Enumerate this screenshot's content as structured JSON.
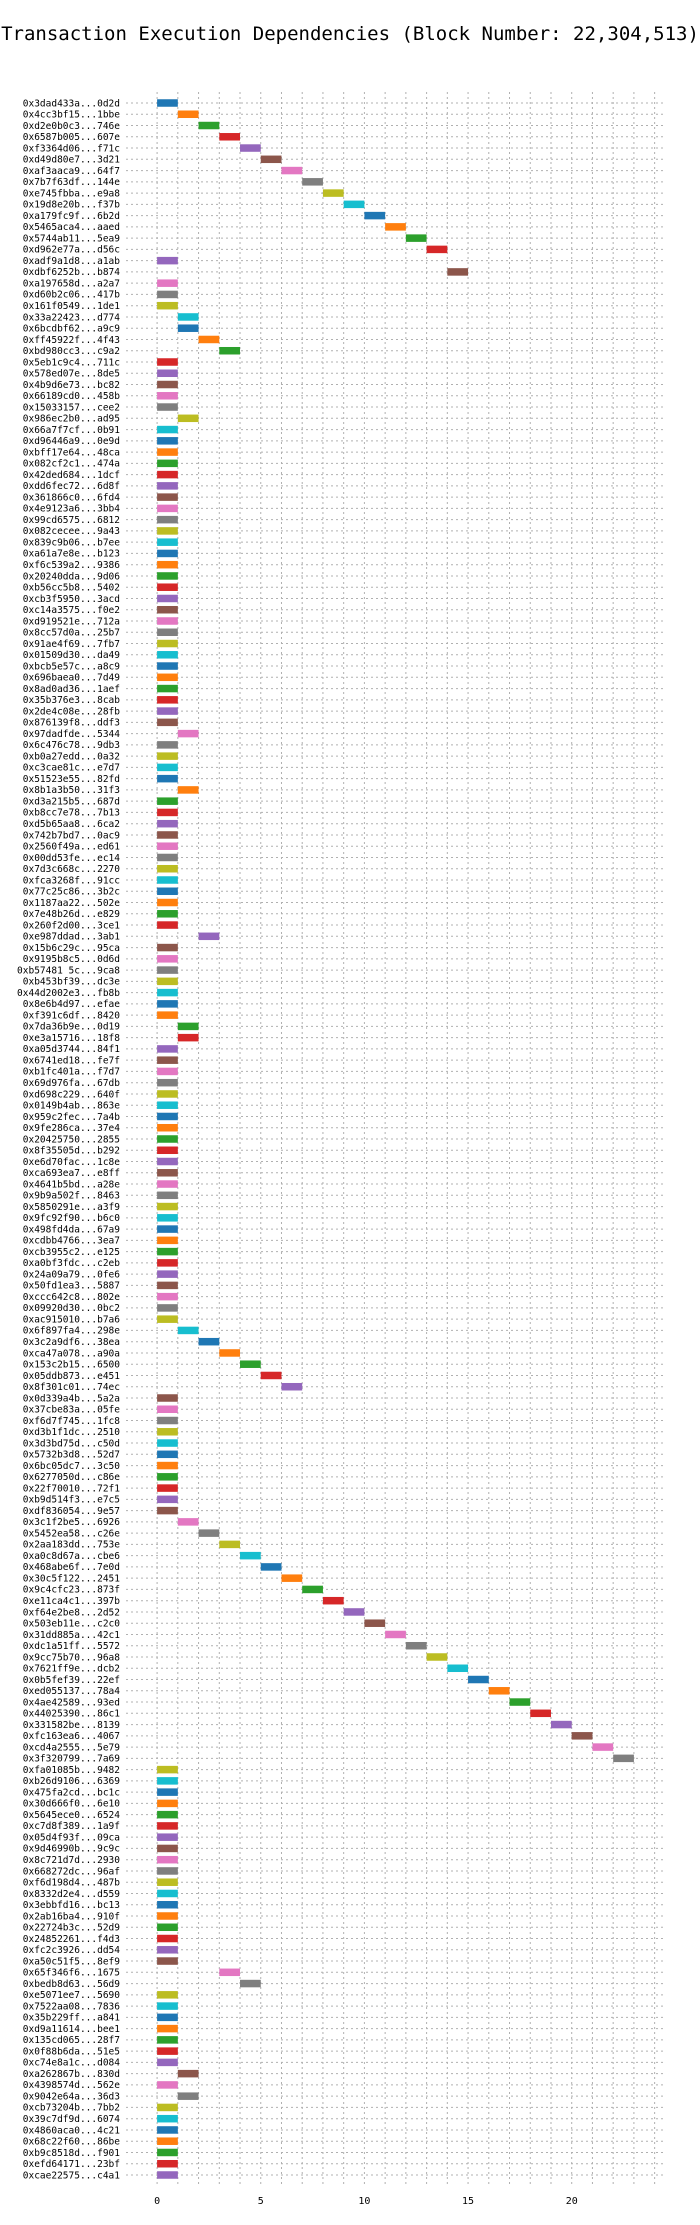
{
  "chart_data": {
    "type": "bar",
    "orientation": "horizontal",
    "title": "Transaction Execution Dependencies (Block Number: 22,304,513)",
    "xlabel": "",
    "ylabel": "",
    "grid": true,
    "xlim": [
      -1.5,
      24.5
    ],
    "xticks": [
      0,
      5,
      10,
      15,
      20
    ],
    "bar_length": 1,
    "palette": [
      "#1f77b4",
      "#ff7f0e",
      "#2ca02c",
      "#d62728",
      "#9467bd",
      "#8c564b",
      "#e377c2",
      "#7f7f7f",
      "#bcbd22",
      "#17becf"
    ],
    "transactions": [
      {
        "tx": "0x3dad433a...0d2d",
        "start": 0
      },
      {
        "tx": "0x4cc3bf15...1bbe",
        "start": 1
      },
      {
        "tx": "0xd2e0b0c3...746e",
        "start": 2
      },
      {
        "tx": "0x6587b005...607e",
        "start": 3
      },
      {
        "tx": "0xf3364d06...f71c",
        "start": 4
      },
      {
        "tx": "0xd49d80e7...3d21",
        "start": 5
      },
      {
        "tx": "0xaf3aaca9...64f7",
        "start": 6
      },
      {
        "tx": "0x7b7f63df...144e",
        "start": 7
      },
      {
        "tx": "0xe745fbba...e9a8",
        "start": 8
      },
      {
        "tx": "0x19d8e20b...f37b",
        "start": 9
      },
      {
        "tx": "0xa179fc9f...6b2d",
        "start": 10
      },
      {
        "tx": "0x5465aca4...aaed",
        "start": 11
      },
      {
        "tx": "0x5744ab11...5ea9",
        "start": 12
      },
      {
        "tx": "0xd962e77a...d56c",
        "start": 13
      },
      {
        "tx": "0xadf9a1d8...a1ab",
        "start": 0
      },
      {
        "tx": "0xdbf6252b...b874",
        "start": 14
      },
      {
        "tx": "0xa197658d...a2a7",
        "start": 0
      },
      {
        "tx": "0xd60b2c06...417b",
        "start": 0
      },
      {
        "tx": "0x161f0549...1de1",
        "start": 0
      },
      {
        "tx": "0x33a22423...d774",
        "start": 1
      },
      {
        "tx": "0x6bcdbf62...a9c9",
        "start": 1
      },
      {
        "tx": "0xff45922f...4f43",
        "start": 2
      },
      {
        "tx": "0xbd980cc3...c9a2",
        "start": 3
      },
      {
        "tx": "0x5eb1c9c4...711c",
        "start": 0
      },
      {
        "tx": "0x578ed07e...8de5",
        "start": 0
      },
      {
        "tx": "0x4b9d6e73...bc82",
        "start": 0
      },
      {
        "tx": "0x66189cd0...458b",
        "start": 0
      },
      {
        "tx": "0x15033157...cee2",
        "start": 0
      },
      {
        "tx": "0x986ec2b0...ad95",
        "start": 1
      },
      {
        "tx": "0x66a7f7cf...0b91",
        "start": 0
      },
      {
        "tx": "0xd96446a9...0e9d",
        "start": 0
      },
      {
        "tx": "0xbff17e64...48ca",
        "start": 0
      },
      {
        "tx": "0x082cf2c1...474a",
        "start": 0
      },
      {
        "tx": "0x42ded684...1dcf",
        "start": 0
      },
      {
        "tx": "0xdd6fec72...6d8f",
        "start": 0
      },
      {
        "tx": "0x361866c0...6fd4",
        "start": 0
      },
      {
        "tx": "0x4e9123a6...3bb4",
        "start": 0
      },
      {
        "tx": "0x99cd6575...6812",
        "start": 0
      },
      {
        "tx": "0x082cecee...9a43",
        "start": 0
      },
      {
        "tx": "0x839c9b06...b7ee",
        "start": 0
      },
      {
        "tx": "0xa61a7e8e...b123",
        "start": 0
      },
      {
        "tx": "0xf6c539a2...9386",
        "start": 0
      },
      {
        "tx": "0x20240dda...9d06",
        "start": 0
      },
      {
        "tx": "0xb56cc5b8...5402",
        "start": 0
      },
      {
        "tx": "0xcb3f5950...3acd",
        "start": 0
      },
      {
        "tx": "0xc14a3575...f0e2",
        "start": 0
      },
      {
        "tx": "0xd919521e...712a",
        "start": 0
      },
      {
        "tx": "0x8cc57d0a...25b7",
        "start": 0
      },
      {
        "tx": "0x91ae4f69...7fb7",
        "start": 0
      },
      {
        "tx": "0x01509d30...da49",
        "start": 0
      },
      {
        "tx": "0xbcb5e57c...a8c9",
        "start": 0
      },
      {
        "tx": "0x696baea0...7d49",
        "start": 0
      },
      {
        "tx": "0x8ad0ad36...1aef",
        "start": 0
      },
      {
        "tx": "0x35b376e3...8cab",
        "start": 0
      },
      {
        "tx": "0x2de4c08e...28fb",
        "start": 0
      },
      {
        "tx": "0x876139f8...ddf3",
        "start": 0
      },
      {
        "tx": "0x97dadfde...5344",
        "start": 1
      },
      {
        "tx": "0x6c476c78...9db3",
        "start": 0
      },
      {
        "tx": "0xb0a27edd...0a32",
        "start": 0
      },
      {
        "tx": "0xc3cae81c...e7d7",
        "start": 0
      },
      {
        "tx": "0x51523e55...82fd",
        "start": 0
      },
      {
        "tx": "0x8b1a3b50...31f3",
        "start": 1
      },
      {
        "tx": "0xd3a215b5...687d",
        "start": 0
      },
      {
        "tx": "0xb8cc7e78...7b13",
        "start": 0
      },
      {
        "tx": "0xd5b65aa8...6ca2",
        "start": 0
      },
      {
        "tx": "0x742b7bd7...0ac9",
        "start": 0
      },
      {
        "tx": "0x2560f49a...ed61",
        "start": 0
      },
      {
        "tx": "0x00dd53fe...ec14",
        "start": 0
      },
      {
        "tx": "0x7d3c668c...2270",
        "start": 0
      },
      {
        "tx": "0xfca3268f...91cc",
        "start": 0
      },
      {
        "tx": "0x77c25c86...3b2c",
        "start": 0
      },
      {
        "tx": "0x1187aa22...502e",
        "start": 0
      },
      {
        "tx": "0x7e48b26d...e829",
        "start": 0
      },
      {
        "tx": "0x260f2d00...3ce1",
        "start": 0
      },
      {
        "tx": "0xe987ddad...3ab1",
        "start": 2
      },
      {
        "tx": "0x15b6c29c...95ca",
        "start": 0
      },
      {
        "tx": "0x9195b8c5...0d6d",
        "start": 0
      },
      {
        "tx": "0xb57481 5c...9ca8",
        "start": 0
      },
      {
        "tx": "0xb453bf39...dc3e",
        "start": 0
      },
      {
        "tx": "0x44d2002e3...fb8b",
        "start": 0
      },
      {
        "tx": "0x8e6b4d97...efae",
        "start": 0
      },
      {
        "tx": "0xf391c6df...8420",
        "start": 0
      },
      {
        "tx": "0x7da36b9e...0d19",
        "start": 1
      },
      {
        "tx": "0xe3a15716...18f8",
        "start": 1
      },
      {
        "tx": "0xa05d3744...84f1",
        "start": 0
      },
      {
        "tx": "0x6741ed18...fe7f",
        "start": 0
      },
      {
        "tx": "0xb1fc401a...f7d7",
        "start": 0
      },
      {
        "tx": "0x69d976fa...67db",
        "start": 0
      },
      {
        "tx": "0xd698c229...640f",
        "start": 0
      },
      {
        "tx": "0x0149b4ab...863e",
        "start": 0
      },
      {
        "tx": "0x959c2fec...7a4b",
        "start": 0
      },
      {
        "tx": "0x9fe286ca...37e4",
        "start": 0
      },
      {
        "tx": "0x20425750...2855",
        "start": 0
      },
      {
        "tx": "0x8f35505d...b292",
        "start": 0
      },
      {
        "tx": "0xe6d70fac...1c8e",
        "start": 0
      },
      {
        "tx": "0xca693ea7...e8ff",
        "start": 0
      },
      {
        "tx": "0x4641b5bd...a28e",
        "start": 0
      },
      {
        "tx": "0x9b9a502f...8463",
        "start": 0
      },
      {
        "tx": "0x5850291e...a3f9",
        "start": 0
      },
      {
        "tx": "0x9fc92f90...b6c0",
        "start": 0
      },
      {
        "tx": "0x498fd4da...67a9",
        "start": 0
      },
      {
        "tx": "0xcdbb4766...3ea7",
        "start": 0
      },
      {
        "tx": "0xcb3955c2...e125",
        "start": 0
      },
      {
        "tx": "0xa0bf3fdc...c2eb",
        "start": 0
      },
      {
        "tx": "0x24a09a79...0fe6",
        "start": 0
      },
      {
        "tx": "0x50fd1ea3...5887",
        "start": 0
      },
      {
        "tx": "0xccc642c8...802e",
        "start": 0
      },
      {
        "tx": "0x09920d30...0bc2",
        "start": 0
      },
      {
        "tx": "0xac915010...b7a6",
        "start": 0
      },
      {
        "tx": "0x6f897fa4...298e",
        "start": 1
      },
      {
        "tx": "0x3c2a9df6...38ea",
        "start": 2
      },
      {
        "tx": "0xca47a078...a90a",
        "start": 3
      },
      {
        "tx": "0x153c2b15...6500",
        "start": 4
      },
      {
        "tx": "0x05ddb873...e451",
        "start": 5
      },
      {
        "tx": "0x8f301c01...74ec",
        "start": 6
      },
      {
        "tx": "0x0d339a4b...5a2a",
        "start": 0
      },
      {
        "tx": "0x37cbe83a...05fe",
        "start": 0
      },
      {
        "tx": "0xf6d7f745...1fc8",
        "start": 0
      },
      {
        "tx": "0xd3b1f1dc...2510",
        "start": 0
      },
      {
        "tx": "0x3d3bd75d...c50d",
        "start": 0
      },
      {
        "tx": "0x5732b3d8...52d7",
        "start": 0
      },
      {
        "tx": "0x6bc05dc7...3c50",
        "start": 0
      },
      {
        "tx": "0x6277050d...c86e",
        "start": 0
      },
      {
        "tx": "0x22f70010...72f1",
        "start": 0
      },
      {
        "tx": "0xb9d514f3...e7c5",
        "start": 0
      },
      {
        "tx": "0xdf836054...9e57",
        "start": 0
      },
      {
        "tx": "0x3c1f2be5...6926",
        "start": 1
      },
      {
        "tx": "0x5452ea58...c26e",
        "start": 2
      },
      {
        "tx": "0x2aa183dd...753e",
        "start": 3
      },
      {
        "tx": "0xa0c8d67a...cbe6",
        "start": 4
      },
      {
        "tx": "0x468abe6f...7e0d",
        "start": 5
      },
      {
        "tx": "0x30c5f122...2451",
        "start": 6
      },
      {
        "tx": "0x9c4cfc23...873f",
        "start": 7
      },
      {
        "tx": "0xe11ca4c1...397b",
        "start": 8
      },
      {
        "tx": "0xf64e2be8...2d52",
        "start": 9
      },
      {
        "tx": "0x503eb11e...c2c0",
        "start": 10
      },
      {
        "tx": "0x31dd885a...42c1",
        "start": 11
      },
      {
        "tx": "0xdc1a51ff...5572",
        "start": 12
      },
      {
        "tx": "0x9cc75b70...96a8",
        "start": 13
      },
      {
        "tx": "0x7621ff9e...dcb2",
        "start": 14
      },
      {
        "tx": "0x0b5fef39...22ef",
        "start": 15
      },
      {
        "tx": "0xed055137...78a4",
        "start": 16
      },
      {
        "tx": "0x4ae42589...93ed",
        "start": 17
      },
      {
        "tx": "0x44025390...86c1",
        "start": 18
      },
      {
        "tx": "0x331582be...8139",
        "start": 19
      },
      {
        "tx": "0xfc163ea6...4067",
        "start": 20
      },
      {
        "tx": "0xcd4a2555...5e79",
        "start": 21
      },
      {
        "tx": "0x3f320799...7a69",
        "start": 22
      },
      {
        "tx": "0xfa01085b...9482",
        "start": 0
      },
      {
        "tx": "0xb26d9106...6369",
        "start": 0
      },
      {
        "tx": "0x475fa2cd...bc1c",
        "start": 0
      },
      {
        "tx": "0x30d666f0...6e10",
        "start": 0
      },
      {
        "tx": "0x5645ece0...6524",
        "start": 0
      },
      {
        "tx": "0xc7d8f389...1a9f",
        "start": 0
      },
      {
        "tx": "0x05d4f93f...09ca",
        "start": 0
      },
      {
        "tx": "0x9d46990b...9c9c",
        "start": 0
      },
      {
        "tx": "0x8c721d7d...2930",
        "start": 0
      },
      {
        "tx": "0x668272dc...96af",
        "start": 0
      },
      {
        "tx": "0xf6d198d4...487b",
        "start": 0
      },
      {
        "tx": "0x8332d2e4...d559",
        "start": 0
      },
      {
        "tx": "0x3ebbfd16...bc13",
        "start": 0
      },
      {
        "tx": "0x2ab16ba4...910f",
        "start": 0
      },
      {
        "tx": "0x22724b3c...52d9",
        "start": 0
      },
      {
        "tx": "0x24852261...f4d3",
        "start": 0
      },
      {
        "tx": "0xfc2c3926...dd54",
        "start": 0
      },
      {
        "tx": "0xa50c51f5...8ef9",
        "start": 0
      },
      {
        "tx": "0x65f346f6...1675",
        "start": 3
      },
      {
        "tx": "0xbedb8d63...56d9",
        "start": 4
      },
      {
        "tx": "0xe5071ee7...5690",
        "start": 0
      },
      {
        "tx": "0x7522aa08...7836",
        "start": 0
      },
      {
        "tx": "0x35b229ff...a841",
        "start": 0
      },
      {
        "tx": "0xd9a11614...bee1",
        "start": 0
      },
      {
        "tx": "0x135cd065...28f7",
        "start": 0
      },
      {
        "tx": "0x0f88b6da...51e5",
        "start": 0
      },
      {
        "tx": "0xc74e8a1c...d084",
        "start": 0
      },
      {
        "tx": "0xa262867b...830d",
        "start": 1
      },
      {
        "tx": "0x4398574d...562e",
        "start": 0
      },
      {
        "tx": "0x9042e64a...36d3",
        "start": 1
      },
      {
        "tx": "0xcb73204b...7bb2",
        "start": 0
      },
      {
        "tx": "0x39c7df9d...6074",
        "start": 0
      },
      {
        "tx": "0x4860aca0...4c21",
        "start": 0
      },
      {
        "tx": "0x68c22f60...86be",
        "start": 0
      },
      {
        "tx": "0xb9c8518d...f901",
        "start": 0
      },
      {
        "tx": "0xefd64171...23bf",
        "start": 0
      },
      {
        "tx": "0xcae22575...c4a1",
        "start": 0
      }
    ]
  }
}
